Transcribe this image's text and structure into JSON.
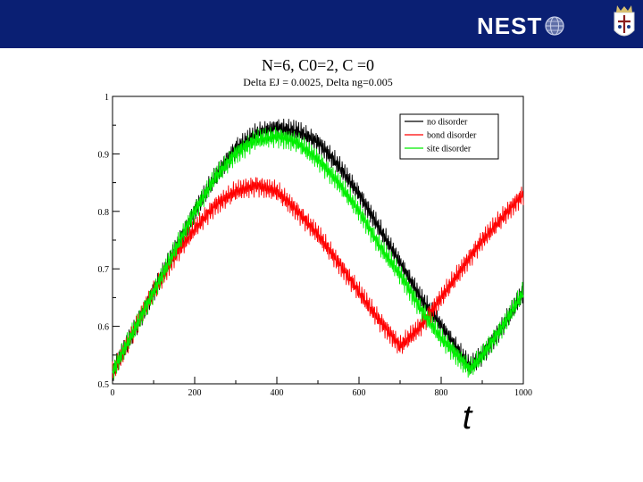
{
  "header": {
    "logo_ne": "NE",
    "logo_st": "ST",
    "colors": {
      "bar": "#0a1f73",
      "logo_text": "#ffffff"
    },
    "icons": [
      "globe-icon",
      "coat-of-arms-icon"
    ]
  },
  "chart_data": {
    "type": "line",
    "title": "N=6, C0=2, C   =0",
    "subtitle": "Delta EJ = 0.0025,  Delta ng=0.005",
    "xlabel": "t",
    "ylabel": "",
    "xlim": [
      0,
      1000
    ],
    "ylim": [
      0.5,
      1.0
    ],
    "x_ticks": [
      0,
      200,
      400,
      600,
      800,
      1000
    ],
    "y_ticks": [
      0.5,
      0.6,
      0.7,
      0.8,
      0.9,
      1
    ],
    "x_tick_labels": [
      "0",
      "200",
      "400",
      "600",
      "800",
      "1000"
    ],
    "y_tick_labels": [
      "0.5",
      "0.6",
      "0.7",
      "0.8",
      "0.9",
      "1"
    ],
    "grid": false,
    "legend_position": "top-right",
    "series": [
      {
        "name": "no disorder",
        "color": "#000000",
        "x": [
          0,
          50,
          100,
          150,
          200,
          250,
          300,
          350,
          400,
          450,
          500,
          550,
          600,
          650,
          700,
          750,
          800,
          850,
          870,
          900,
          950,
          1000
        ],
        "y": [
          0.52,
          0.59,
          0.66,
          0.73,
          0.8,
          0.86,
          0.91,
          0.935,
          0.945,
          0.94,
          0.92,
          0.88,
          0.83,
          0.77,
          0.71,
          0.65,
          0.6,
          0.55,
          0.53,
          0.55,
          0.6,
          0.66
        ],
        "noise": 0.02
      },
      {
        "name": "bond disorder",
        "color": "#ff0000",
        "x": [
          0,
          50,
          100,
          150,
          200,
          250,
          300,
          350,
          400,
          450,
          500,
          550,
          600,
          650,
          700,
          750,
          800,
          850,
          900,
          950,
          1000
        ],
        "y": [
          0.52,
          0.59,
          0.66,
          0.72,
          0.77,
          0.81,
          0.835,
          0.845,
          0.835,
          0.8,
          0.76,
          0.71,
          0.66,
          0.61,
          0.565,
          0.6,
          0.65,
          0.7,
          0.75,
          0.79,
          0.83
        ],
        "noise": 0.02
      },
      {
        "name": "site disorder",
        "color": "#00ee00",
        "x": [
          0,
          50,
          100,
          150,
          200,
          250,
          300,
          350,
          400,
          450,
          500,
          550,
          600,
          650,
          700,
          750,
          800,
          850,
          870,
          900,
          950,
          1000
        ],
        "y": [
          0.52,
          0.59,
          0.66,
          0.73,
          0.8,
          0.86,
          0.9,
          0.925,
          0.93,
          0.92,
          0.89,
          0.85,
          0.8,
          0.74,
          0.69,
          0.63,
          0.58,
          0.54,
          0.525,
          0.55,
          0.6,
          0.66
        ],
        "noise": 0.02
      }
    ]
  }
}
